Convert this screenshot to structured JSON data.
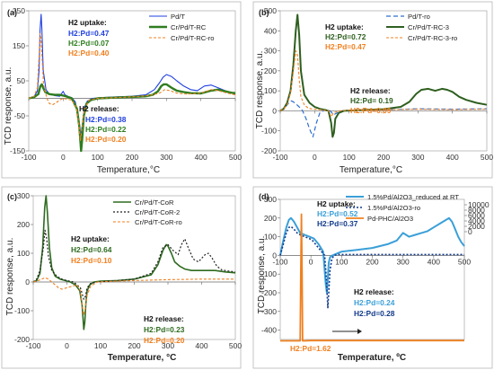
{
  "chart_data": [
    {
      "panel_label": "(a)",
      "type": "line",
      "xlabel": "Temperature,°C",
      "ylabel": "TCD response, a.u.",
      "xlim": [
        -100,
        500
      ],
      "ylim": [
        -150,
        250
      ],
      "xticks": [
        "-100",
        "0",
        "100",
        "200",
        "300",
        "400",
        "500"
      ],
      "yticks": [
        "-150",
        "-50",
        "50",
        "150",
        "250"
      ],
      "legend_position": "top-right",
      "series": [
        {
          "name": "Pd/T",
          "color": "#1f3fe0",
          "dash": "solid",
          "width": 1.1,
          "x": [
            -100,
            -85,
            -75,
            -70,
            -67,
            -64,
            -62,
            -58,
            -50,
            -40,
            -25,
            -10,
            0,
            5,
            15,
            25,
            35,
            45,
            50,
            55,
            62,
            70,
            85,
            110,
            150,
            200,
            240,
            265,
            280,
            290,
            300,
            315,
            330,
            350,
            370,
            390,
            410,
            430,
            450,
            470,
            490,
            500
          ],
          "y": [
            0,
            5,
            20,
            80,
            195,
            240,
            200,
            80,
            25,
            12,
            8,
            6,
            20,
            10,
            5,
            2,
            -10,
            -60,
            -110,
            -80,
            -25,
            -8,
            0,
            2,
            4,
            6,
            10,
            25,
            45,
            60,
            68,
            62,
            50,
            35,
            25,
            22,
            35,
            38,
            30,
            22,
            15,
            12
          ]
        },
        {
          "name": "Cr/Pd/T-RC",
          "color": "#2e7d1f",
          "dash": "solid",
          "width": 2.4,
          "x": [
            -100,
            -85,
            -72,
            -66,
            -62,
            -58,
            -52,
            -40,
            -25,
            -10,
            0,
            10,
            25,
            40,
            47,
            52,
            55,
            60,
            68,
            80,
            100,
            150,
            200,
            240,
            260,
            275,
            285,
            292,
            300,
            315,
            330,
            350,
            370,
            400,
            430,
            450,
            470,
            490,
            500
          ],
          "y": [
            0,
            3,
            12,
            35,
            40,
            30,
            18,
            12,
            10,
            10,
            8,
            5,
            0,
            -30,
            -80,
            -150,
            -120,
            -50,
            -15,
            -5,
            0,
            2,
            4,
            6,
            10,
            20,
            35,
            40,
            40,
            30,
            22,
            18,
            15,
            14,
            22,
            25,
            20,
            16,
            15
          ]
        },
        {
          "name": "Cr/Pd/T-RC-ro",
          "color": "#f08020",
          "dash": "3 2",
          "width": 1.1,
          "x": [
            -100,
            -85,
            -75,
            -70,
            -67,
            -64,
            -61,
            -57,
            -50,
            -45,
            -40,
            -30,
            -20,
            -10,
            0,
            10,
            25,
            38,
            45,
            50,
            55,
            62,
            75,
            100,
            150,
            200,
            250,
            280,
            295,
            310,
            330,
            360,
            400,
            430,
            450,
            480,
            500
          ],
          "y": [
            0,
            5,
            30,
            120,
            185,
            165,
            110,
            40,
            10,
            -5,
            -15,
            -18,
            -12,
            -5,
            0,
            -2,
            -5,
            -25,
            -70,
            -120,
            -85,
            -30,
            -5,
            0,
            2,
            4,
            8,
            15,
            25,
            22,
            15,
            12,
            15,
            25,
            22,
            14,
            10
          ]
        }
      ],
      "annotations": [
        {
          "text": "H2 uptake:",
          "color": "#111111"
        },
        {
          "text": "H2:Pd=0.47",
          "color": "#1f3fe0"
        },
        {
          "text": "H2:Pd=0.07",
          "color": "#2e7d1f"
        },
        {
          "text": "H2:Pd=0.40",
          "color": "#f08020"
        },
        {
          "text": "H2 release:",
          "color": "#111111"
        },
        {
          "text": "H2:Pd=0.38",
          "color": "#1f3fe0"
        },
        {
          "text": "H2:Pd=0.22",
          "color": "#2e7d1f"
        },
        {
          "text": "H2:Pd=0.20",
          "color": "#f08020"
        }
      ]
    },
    {
      "panel_label": "(b)",
      "type": "line",
      "xlabel": "Temperature,°C",
      "ylabel": "TCD response, a.u.",
      "xlim": [
        -100,
        500
      ],
      "ylim": [
        -200,
        500
      ],
      "xticks": [
        "-100",
        "0",
        "100",
        "200",
        "300",
        "400",
        "500"
      ],
      "yticks": [
        "-200",
        "-100",
        "0",
        "100",
        "200",
        "300",
        "400",
        "500"
      ],
      "legend_position": "top-right",
      "series": [
        {
          "name": "Pd/T-ro",
          "color": "#2f6fd0",
          "dash": "5 3",
          "width": 1.2,
          "x": [
            -100,
            -85,
            -75,
            -68,
            -62,
            -55,
            -45,
            -35,
            -25,
            -15,
            -5,
            5,
            15,
            25,
            35,
            45,
            55,
            65,
            80,
            100,
            150,
            200,
            300,
            400,
            500
          ],
          "y": [
            0,
            20,
            40,
            50,
            45,
            35,
            20,
            0,
            -40,
            -90,
            -130,
            -60,
            -10,
            0,
            5,
            0,
            -20,
            -10,
            0,
            3,
            5,
            5,
            10,
            8,
            10
          ]
        },
        {
          "name": "Cr/Pd/T-RC-3",
          "color": "#2e5f1f",
          "dash": "solid",
          "width": 2.0,
          "x": [
            -100,
            -90,
            -80,
            -70,
            -62,
            -55,
            -50,
            -45,
            -40,
            -30,
            -15,
            0,
            15,
            30,
            40,
            48,
            52,
            56,
            60,
            70,
            85,
            110,
            150,
            200,
            250,
            275,
            295,
            310,
            330,
            350,
            370,
            385,
            400,
            420,
            440,
            470,
            500
          ],
          "y": [
            0,
            10,
            40,
            100,
            230,
            400,
            480,
            380,
            200,
            80,
            40,
            20,
            10,
            5,
            0,
            -60,
            -130,
            -110,
            -40,
            -10,
            0,
            2,
            5,
            8,
            20,
            45,
            85,
            105,
            110,
            100,
            110,
            105,
            95,
            70,
            55,
            40,
            30
          ]
        },
        {
          "name": "Cr/Pd/T-RC-3-ro",
          "color": "#f08020",
          "dash": "3 2",
          "width": 1.1,
          "x": [
            -100,
            -90,
            -80,
            -70,
            -62,
            -55,
            -50,
            -45,
            -40,
            -30,
            -20,
            -10,
            0,
            20,
            40,
            48,
            55,
            70,
            100,
            200,
            300,
            400,
            500
          ],
          "y": [
            0,
            10,
            30,
            90,
            200,
            300,
            280,
            160,
            70,
            30,
            15,
            10,
            8,
            5,
            0,
            -30,
            -10,
            0,
            3,
            5,
            8,
            6,
            8
          ]
        }
      ],
      "annotations": [
        {
          "text": "H2 uptake:",
          "color": "#111111"
        },
        {
          "text": "H2:Pd=0.72",
          "color": "#2e5f1f"
        },
        {
          "text": "H2:Pd=0.47",
          "color": "#f08020"
        },
        {
          "text": "H2 release:",
          "color": "#111111"
        },
        {
          "text": "H2:Pd= 0.19",
          "color": "#2e5f1f"
        },
        {
          "text": "H2:Pd=0.09",
          "color": "#f08020"
        }
      ]
    },
    {
      "panel_label": "(c)",
      "type": "line",
      "xlabel": "Temperature, °C",
      "ylabel": "TCD response, a.u.",
      "xlim": [
        -100,
        500
      ],
      "ylim": [
        -200,
        300
      ],
      "xticks": [
        "-100",
        "0",
        "100",
        "200",
        "300",
        "400",
        "500"
      ],
      "yticks": [
        "-200",
        "-100",
        "0",
        "100",
        "200",
        "300"
      ],
      "legend_position": "top-right",
      "series": [
        {
          "name": "Cr/Pd/T-CoR",
          "color": "#2e6b1f",
          "dash": "solid",
          "width": 1.6,
          "x": [
            -100,
            -90,
            -80,
            -72,
            -66,
            -62,
            -58,
            -52,
            -45,
            -35,
            -20,
            -5,
            10,
            25,
            38,
            45,
            50,
            53,
            56,
            60,
            68,
            80,
            100,
            150,
            200,
            250,
            270,
            285,
            295,
            300,
            310,
            320,
            335,
            350,
            370,
            400,
            440,
            470,
            500
          ],
          "y": [
            0,
            5,
            30,
            120,
            260,
            300,
            240,
            120,
            50,
            20,
            10,
            5,
            0,
            -10,
            -30,
            -80,
            -165,
            -140,
            -80,
            -30,
            -10,
            0,
            3,
            5,
            10,
            25,
            60,
            110,
            130,
            125,
            100,
            70,
            55,
            45,
            40,
            40,
            40,
            35,
            32
          ]
        },
        {
          "name": "Cr/Pd/T-CoR-2",
          "color": "#222222",
          "dash": "2 2",
          "width": 1.2,
          "x": [
            -100,
            -90,
            -80,
            -70,
            -65,
            -60,
            -55,
            -45,
            -30,
            -15,
            0,
            20,
            40,
            50,
            55,
            60,
            70,
            90,
            150,
            200,
            250,
            270,
            285,
            300,
            315,
            330,
            340,
            350,
            360,
            375,
            390,
            410,
            420,
            430,
            445,
            460,
            480,
            500
          ],
          "y": [
            0,
            10,
            40,
            120,
            180,
            150,
            90,
            40,
            20,
            10,
            5,
            0,
            -20,
            -60,
            -50,
            -20,
            -5,
            0,
            5,
            10,
            30,
            70,
            120,
            130,
            110,
            95,
            130,
            150,
            120,
            80,
            70,
            95,
            100,
            85,
            55,
            42,
            38,
            35
          ]
        },
        {
          "name": "Cr/Pd/T-CoR-ro",
          "color": "#f08020",
          "dash": "3 2",
          "width": 1.1,
          "x": [
            -100,
            -85,
            -75,
            -65,
            -55,
            -45,
            -35,
            -25,
            -15,
            0,
            15,
            30,
            40,
            45,
            50,
            55,
            60,
            70,
            90,
            120,
            200,
            300,
            400,
            500
          ],
          "y": [
            0,
            5,
            10,
            15,
            10,
            0,
            -10,
            -20,
            -25,
            -20,
            -15,
            -10,
            -30,
            -80,
            -115,
            -90,
            -45,
            -15,
            0,
            2,
            5,
            8,
            10,
            10
          ]
        }
      ],
      "annotations": [
        {
          "text": "H2 uptake:",
          "color": "#111111"
        },
        {
          "text": "H2:Pd=0.64",
          "color": "#2e6b1f"
        },
        {
          "text": "H2:Pd=0.10",
          "color": "#f08020"
        },
        {
          "text": "H2 release:",
          "color": "#111111"
        },
        {
          "text": "H2:Pd=0.23",
          "color": "#2e6b1f"
        },
        {
          "text": "H2:Pd=0.20",
          "color": "#f08020"
        }
      ]
    },
    {
      "panel_label": "(d)",
      "type": "line",
      "xlabel": "Temperature, ºC",
      "ylabel": "TCD response, a.u.",
      "xlim": [
        -100,
        500
      ],
      "ylim": [
        -450,
        300
      ],
      "ylim_right": [
        -40000,
        12000
      ],
      "xticks": [
        "-100",
        "0",
        "100",
        "200",
        "300",
        "400",
        "500"
      ],
      "yticks": [
        "-400",
        "-300",
        "-200",
        "-100",
        "0",
        "100",
        "200",
        "300"
      ],
      "yticks_right": [
        "0",
        "2000",
        "4000",
        "6000",
        "8000",
        "10000"
      ],
      "legend_position": "top-right",
      "series": [
        {
          "name": "1.5%Pd/Al2O3_reduced at RT",
          "color": "#3a9fd8",
          "dash": "solid",
          "width": 2.0,
          "axis": "left",
          "x": [
            -100,
            -90,
            -80,
            -72,
            -65,
            -55,
            -45,
            -35,
            -20,
            -5,
            10,
            25,
            40,
            48,
            52,
            55,
            58,
            62,
            70,
            85,
            100,
            150,
            200,
            250,
            280,
            300,
            320,
            340,
            360,
            380,
            400,
            420,
            440,
            450,
            460,
            470,
            480,
            490,
            500
          ],
          "y": [
            0,
            80,
            150,
            190,
            200,
            180,
            150,
            120,
            110,
            100,
            90,
            60,
            20,
            -150,
            -200,
            -120,
            -40,
            -10,
            0,
            10,
            20,
            30,
            40,
            60,
            80,
            120,
            100,
            110,
            120,
            130,
            150,
            170,
            190,
            200,
            180,
            140,
            100,
            70,
            50
          ]
        },
        {
          "name": "1.5%Pd/Al2O3-ro",
          "color": "#123a8a",
          "dash": "2 2",
          "width": 1.6,
          "axis": "left",
          "x": [
            -100,
            -90,
            -80,
            -72,
            -65,
            -55,
            -45,
            -35,
            -20,
            -5,
            5,
            15,
            25,
            35,
            45,
            50,
            55,
            58,
            62,
            68,
            75,
            90,
            110,
            150,
            200,
            300,
            400,
            500
          ],
          "y": [
            0,
            60,
            120,
            150,
            155,
            140,
            120,
            110,
            100,
            90,
            80,
            60,
            40,
            20,
            0,
            -120,
            -280,
            -200,
            -80,
            -20,
            0,
            5,
            5,
            5,
            5,
            5,
            5,
            5
          ]
        },
        {
          "name": "Pd-PHC/Al2O3",
          "color": "#f08020",
          "dash": "solid",
          "width": 1.8,
          "axis": "right",
          "x": [
            -100,
            -60,
            -40,
            -35,
            -33,
            -31,
            -29,
            -27,
            -25,
            -20,
            0,
            100,
            200,
            300,
            400,
            500
          ],
          "y": [
            -40500,
            -40500,
            -40500,
            -40500,
            -15000,
            6500,
            -15000,
            -40500,
            -40500,
            -40500,
            -40400,
            -40400,
            -40400,
            -40400,
            -40400,
            -40400
          ]
        }
      ],
      "annotations": [
        {
          "text": "H2 uptake:",
          "color": "#111111"
        },
        {
          "text": "H2:Pd=0.52",
          "color": "#3a9fd8"
        },
        {
          "text": "H2:Pd=0.37",
          "color": "#123a8a"
        },
        {
          "text": "H2 release:",
          "color": "#111111"
        },
        {
          "text": "H2:Pd=0.24",
          "color": "#3a9fd8"
        },
        {
          "text": "H2:Pd=0.28",
          "color": "#123a8a"
        },
        {
          "text": "H2:Pd=1.62",
          "color": "#f08020"
        }
      ]
    }
  ]
}
